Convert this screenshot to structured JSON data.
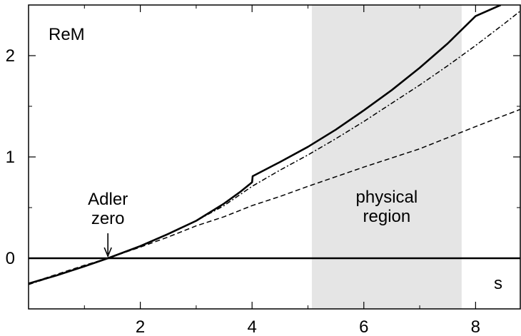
{
  "chart_data": {
    "type": "line",
    "title": "",
    "ylabel": "ReM",
    "xlabel": "s",
    "xlim": [
      0,
      8.8
    ],
    "ylim": [
      -0.5,
      2.5
    ],
    "x_ticks": [
      2,
      4,
      6,
      8
    ],
    "y_ticks": [
      0,
      1,
      2
    ],
    "x_minor_ticks": [
      1,
      3,
      5,
      7
    ],
    "y_minor_ticks": [
      -0.5,
      0.5,
      1.5
    ],
    "grid": false,
    "legend": "none",
    "shaded_region": {
      "x_from": 5.07,
      "x_to": 7.75,
      "color": "#e5e5e5",
      "label_lines": [
        "physical",
        "region"
      ]
    },
    "zero_line": {
      "y": 0
    },
    "annotation": {
      "lines": [
        "Adler",
        "zero"
      ],
      "points_to": {
        "x": 1.42,
        "y": 0
      }
    },
    "series": [
      {
        "style": "solid",
        "x": [
          0,
          0.5,
          1.0,
          1.42,
          2.0,
          2.5,
          3.0,
          3.5,
          3.8,
          4.0,
          4.01,
          4.5,
          5.0,
          5.5,
          6.0,
          6.5,
          7.0,
          7.5,
          8.0,
          8.45
        ],
        "y": [
          -0.25,
          -0.17,
          -0.08,
          0.0,
          0.12,
          0.24,
          0.37,
          0.54,
          0.66,
          0.75,
          0.81,
          0.95,
          1.1,
          1.27,
          1.46,
          1.66,
          1.88,
          2.12,
          2.39,
          2.5
        ]
      },
      {
        "style": "dashdot",
        "x": [
          0,
          0.5,
          1.0,
          1.42,
          2.0,
          2.5,
          3.0,
          3.5,
          4.0,
          4.5,
          5.0,
          5.5,
          6.0,
          6.5,
          7.0,
          7.5,
          8.0,
          8.5,
          8.8
        ],
        "y": [
          -0.26,
          -0.17,
          -0.08,
          0.0,
          0.12,
          0.24,
          0.37,
          0.52,
          0.71,
          0.87,
          1.02,
          1.18,
          1.35,
          1.53,
          1.71,
          1.9,
          2.1,
          2.31,
          2.44
        ]
      },
      {
        "style": "dashed",
        "x": [
          0,
          0.5,
          1.0,
          1.42,
          2.0,
          2.5,
          3.0,
          3.5,
          4.0,
          4.5,
          5.0,
          6.0,
          7.0,
          8.0,
          8.8
        ],
        "y": [
          -0.25,
          -0.16,
          -0.07,
          0.0,
          0.11,
          0.21,
          0.32,
          0.41,
          0.52,
          0.61,
          0.71,
          0.9,
          1.08,
          1.3,
          1.47
        ]
      }
    ]
  }
}
